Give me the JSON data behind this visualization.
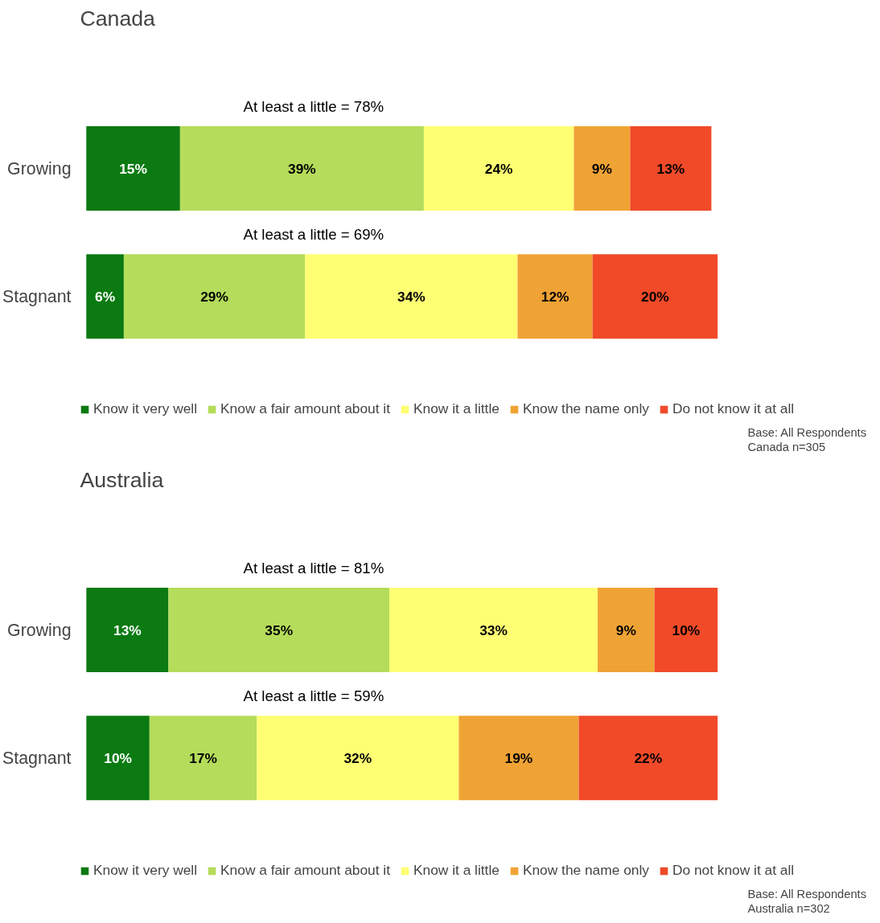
{
  "chart_data": [
    {
      "type": "bar",
      "orientation": "horizontal",
      "stacked": true,
      "title": "Canada",
      "categories": [
        "Growing",
        "Stagnant"
      ],
      "legend": "bottom",
      "tick_labels": "y",
      "series": [
        {
          "name": "Know it very well",
          "color": "#0b7a12",
          "values": [
            15,
            6
          ],
          "value_labels": [
            "15%",
            "6%"
          ]
        },
        {
          "name": "Know a fair amount about it",
          "color": "#b5dc5a",
          "values": [
            39,
            29
          ],
          "value_labels": [
            "39%",
            "29%"
          ]
        },
        {
          "name": "Know it a little",
          "color": "#ffff73",
          "values": [
            24,
            34
          ],
          "value_labels": [
            "24%",
            "34%"
          ]
        },
        {
          "name": "Know the name only",
          "color": "#f0a335",
          "values": [
            9,
            12
          ],
          "value_labels": [
            "9%",
            "12%"
          ]
        },
        {
          "name": "Do not know it at all",
          "color": "#f04a28",
          "values": [
            13,
            20
          ],
          "value_labels": [
            "13%",
            "20%"
          ]
        }
      ],
      "annotations": [
        "At least a little = 78%",
        "At least a little = 69%",
        "Base: All Respondents",
        "Canada n=305"
      ]
    },
    {
      "type": "bar",
      "orientation": "horizontal",
      "stacked": true,
      "title": "Australia",
      "categories": [
        "Growing",
        "Stagnant"
      ],
      "legend": "bottom",
      "tick_labels": "y",
      "series": [
        {
          "name": "Know it very well",
          "color": "#0b7a12",
          "values": [
            13,
            10
          ],
          "value_labels": [
            "13%",
            "10%"
          ]
        },
        {
          "name": "Know a fair amount about it",
          "color": "#b5dc5a",
          "values": [
            35,
            17
          ],
          "value_labels": [
            "35%",
            "17%"
          ]
        },
        {
          "name": "Know it a little",
          "color": "#ffff73",
          "values": [
            33,
            32
          ],
          "value_labels": [
            "33%",
            "32%"
          ]
        },
        {
          "name": "Know the name only",
          "color": "#f0a335",
          "values": [
            9,
            19
          ],
          "value_labels": [
            "9%",
            "19%"
          ]
        },
        {
          "name": "Do not know it at all",
          "color": "#f04a28",
          "values": [
            10,
            22
          ],
          "value_labels": [
            "10%",
            "22%"
          ]
        }
      ],
      "annotations": [
        "At least a little = 81%",
        "At least a little = 59%",
        "Base: All Respondents",
        "Australia n=302"
      ]
    }
  ]
}
